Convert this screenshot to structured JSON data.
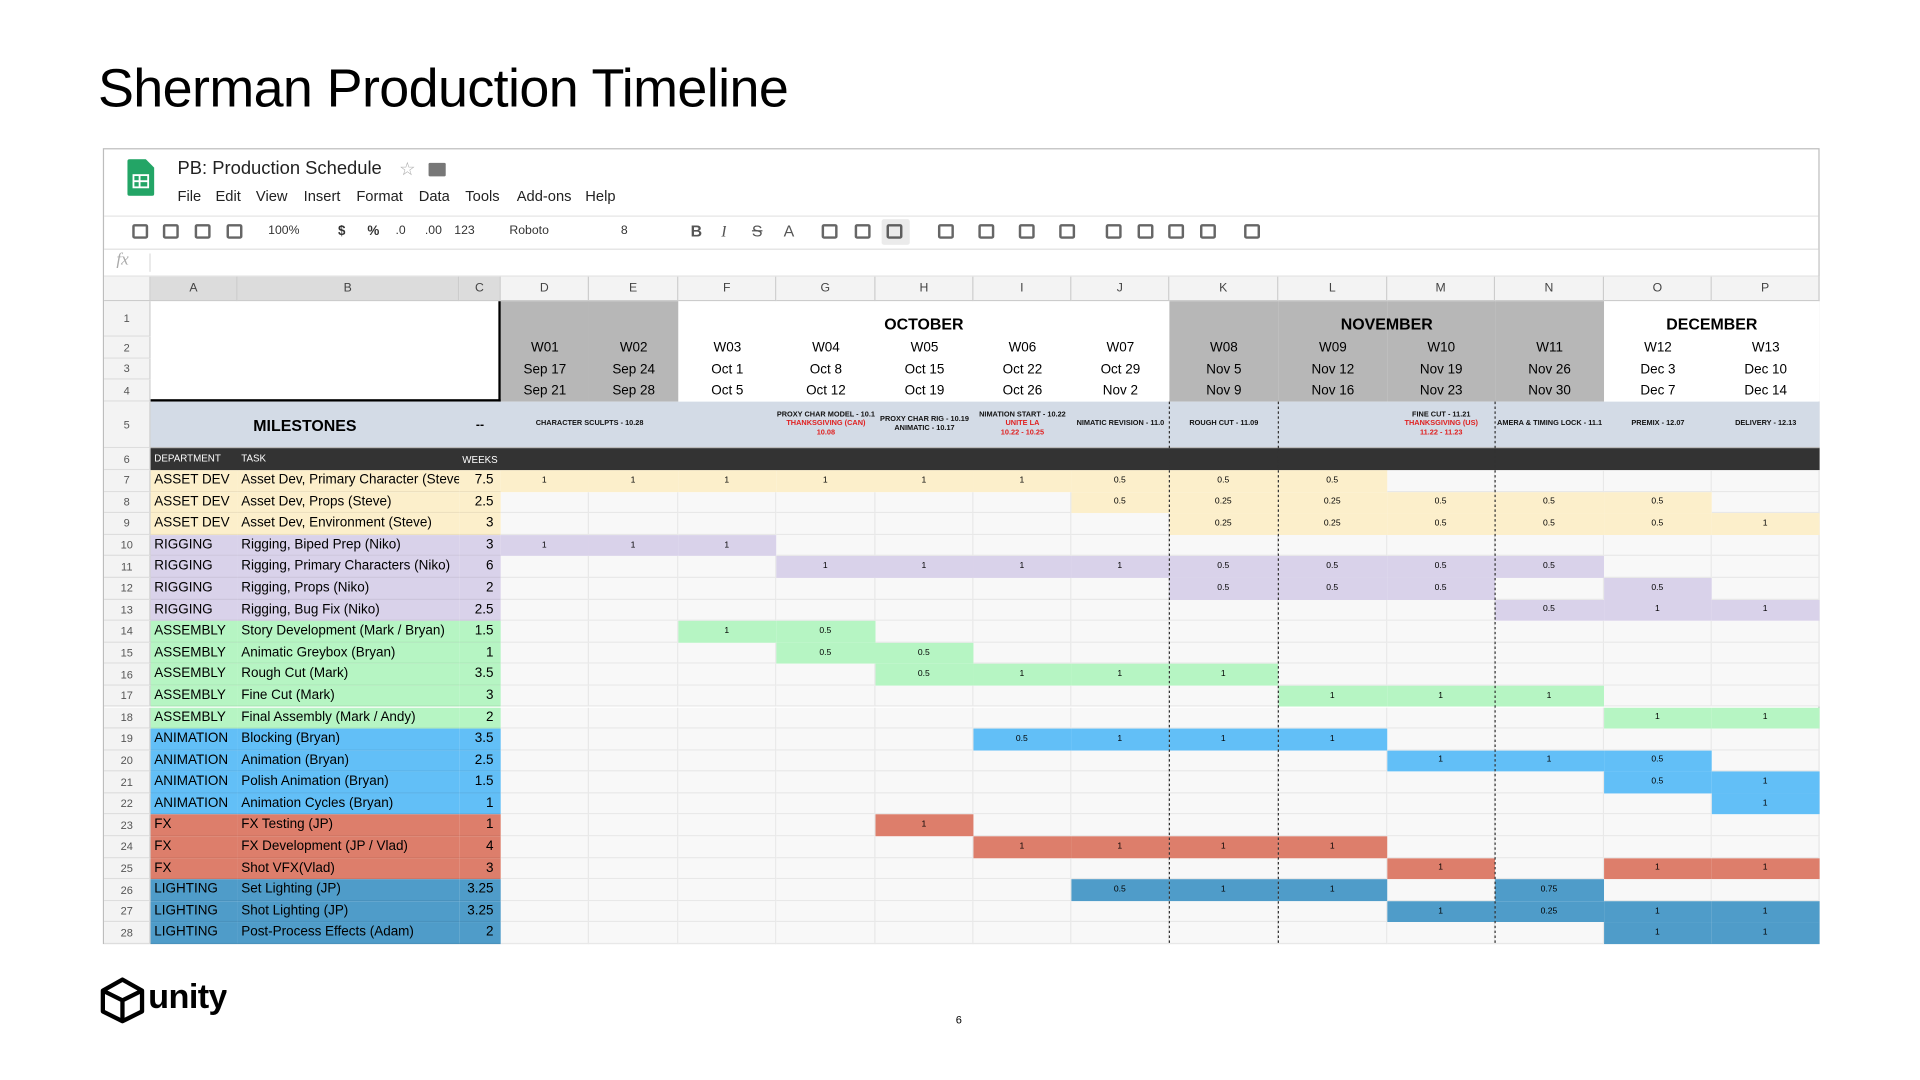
{
  "title": "Sherman Production Timeline",
  "sheet": {
    "doc_title": "PB: Production Schedule",
    "menu": [
      "File",
      "Edit",
      "View",
      "Insert",
      "Format",
      "Data",
      "Tools",
      "Add-ons",
      "Help"
    ],
    "toolbar": [
      "100%",
      "$",
      "%",
      ".0",
      ".00",
      "123",
      "Roboto",
      "8",
      "B",
      "I",
      "S",
      "A"
    ],
    "formula_label": "fx",
    "column_letters": [
      "A",
      "B",
      "C",
      "D",
      "E",
      "F",
      "G",
      "H",
      "I",
      "J",
      "K",
      "L",
      "M",
      "N",
      "O",
      "P"
    ],
    "row_numbers": [
      1,
      2,
      3,
      4,
      5,
      6,
      7,
      8,
      9,
      10,
      11,
      12,
      13,
      14,
      15,
      16,
      17,
      18,
      19,
      20,
      21,
      22,
      23,
      24,
      25,
      26,
      27,
      28
    ],
    "months": [
      {
        "label": "OCTOBER",
        "first_week": "W03",
        "last_week": "W07"
      },
      {
        "label": "NOVEMBER",
        "first_week": "W08",
        "last_week": "W11"
      },
      {
        "label": "DECEMBER",
        "first_week": "W12",
        "last_week": "W13"
      }
    ],
    "weeks": [
      {
        "week": "W01",
        "start": "Sep 17",
        "end": "Sep 21"
      },
      {
        "week": "W02",
        "start": "Sep 24",
        "end": "Sep 28"
      },
      {
        "week": "W03",
        "start": "Oct 1",
        "end": "Oct 5"
      },
      {
        "week": "W04",
        "start": "Oct 8",
        "end": "Oct 12"
      },
      {
        "week": "W05",
        "start": "Oct 15",
        "end": "Oct 19"
      },
      {
        "week": "W06",
        "start": "Oct 22",
        "end": "Oct 26"
      },
      {
        "week": "W07",
        "start": "Oct 29",
        "end": "Nov 2"
      },
      {
        "week": "W08",
        "start": "Nov 5",
        "end": "Nov 9"
      },
      {
        "week": "W09",
        "start": "Nov 12",
        "end": "Nov 16"
      },
      {
        "week": "W10",
        "start": "Nov 19",
        "end": "Nov 23"
      },
      {
        "week": "W11",
        "start": "Nov 26",
        "end": "Nov 30"
      },
      {
        "week": "W12",
        "start": "Dec 3",
        "end": "Dec 7"
      },
      {
        "week": "W13",
        "start": "Dec 10",
        "end": "Dec 14"
      }
    ],
    "milestones_label": "MILESTONES",
    "milestones_weeks": "--",
    "milestones": [
      [
        {
          "text": "CHARACTER SCULPTS - 10.28",
          "kind": "label"
        }
      ],
      null,
      null,
      [
        {
          "text": "PROXY CHAR MODEL - 10.1",
          "kind": "label"
        },
        {
          "text": "THANKSGIVING (CAN)",
          "kind": "holiday"
        },
        {
          "text": "10.08",
          "kind": "holiday"
        }
      ],
      [
        {
          "text": "PROXY CHAR RIG - 10.19",
          "kind": "label"
        },
        {
          "text": "ANIMATIC - 10.17",
          "kind": "label"
        }
      ],
      [
        {
          "text": "NIMATION START - 10.22",
          "kind": "label"
        },
        {
          "text": "UNITE LA",
          "kind": "holiday"
        },
        {
          "text": "10.22 - 10.25",
          "kind": "holiday"
        }
      ],
      [
        {
          "text": "NIMATIC REVISION - 11.0",
          "kind": "label"
        }
      ],
      [
        {
          "text": "ROUGH CUT - 11.09",
          "kind": "label"
        }
      ],
      null,
      [
        {
          "text": "FINE CUT - 11.21",
          "kind": "label"
        },
        {
          "text": "THANKSGIVING (US)",
          "kind": "holiday"
        },
        {
          "text": "11.22 - 11.23",
          "kind": "holiday"
        }
      ],
      [
        {
          "text": "AMERA & TIMING LOCK - 11.1",
          "kind": "label"
        }
      ],
      [
        {
          "text": "PREMIX - 12.07",
          "kind": "label"
        }
      ],
      [
        {
          "text": "DELIVERY - 12.13",
          "kind": "label"
        }
      ]
    ],
    "task_header": {
      "department": "DEPARTMENT",
      "task": "TASK",
      "weeks": "WEEKS"
    },
    "department_colors": {
      "ASSET DEV": "#fcefcb",
      "RIGGING": "#d9d2ea",
      "ASSEMBLY": "#b6f5c3",
      "ANIMATION": "#62bff7",
      "FX": "#dd7e6b",
      "LIGHTING": "#4f9cc9"
    },
    "tasks": [
      {
        "department": "ASSET DEV",
        "task": "Asset Dev, Primary Character (Steve)",
        "weeks": 7.5,
        "cells": [
          1,
          1,
          1,
          1,
          1,
          1,
          0.5,
          0.5,
          0.5,
          null,
          null,
          null,
          null
        ]
      },
      {
        "department": "ASSET DEV",
        "task": "Asset Dev, Props (Steve)",
        "weeks": 2.5,
        "cells": [
          null,
          null,
          null,
          null,
          null,
          null,
          0.5,
          0.25,
          0.25,
          0.5,
          0.5,
          0.5,
          null
        ]
      },
      {
        "department": "ASSET DEV",
        "task": "Asset Dev, Environment (Steve)",
        "weeks": 3,
        "cells": [
          null,
          null,
          null,
          null,
          null,
          null,
          null,
          0.25,
          0.25,
          0.5,
          0.5,
          0.5,
          1
        ]
      },
      {
        "department": "RIGGING",
        "task": "Rigging, Biped Prep (Niko)",
        "weeks": 3,
        "cells": [
          1,
          1,
          1,
          null,
          null,
          null,
          null,
          null,
          null,
          null,
          null,
          null,
          null
        ]
      },
      {
        "department": "RIGGING",
        "task": "Rigging, Primary Characters (Niko)",
        "weeks": 6,
        "cells": [
          null,
          null,
          null,
          1,
          1,
          1,
          1,
          0.5,
          0.5,
          0.5,
          0.5,
          null,
          null
        ]
      },
      {
        "department": "RIGGING",
        "task": "Rigging, Props (Niko)",
        "weeks": 2,
        "cells": [
          null,
          null,
          null,
          null,
          null,
          null,
          null,
          0.5,
          0.5,
          0.5,
          null,
          0.5,
          null
        ]
      },
      {
        "department": "RIGGING",
        "task": "Rigging, Bug Fix (Niko)",
        "weeks": 2.5,
        "cells": [
          null,
          null,
          null,
          null,
          null,
          null,
          null,
          null,
          null,
          null,
          0.5,
          1,
          1
        ]
      },
      {
        "department": "ASSEMBLY",
        "task": "Story Development (Mark / Bryan)",
        "weeks": 1.5,
        "cells": [
          null,
          null,
          1,
          0.5,
          null,
          null,
          null,
          null,
          null,
          null,
          null,
          null,
          null
        ]
      },
      {
        "department": "ASSEMBLY",
        "task": "Animatic Greybox (Bryan)",
        "weeks": 1,
        "cells": [
          null,
          null,
          null,
          0.5,
          0.5,
          null,
          null,
          null,
          null,
          null,
          null,
          null,
          null
        ]
      },
      {
        "department": "ASSEMBLY",
        "task": "Rough Cut (Mark)",
        "weeks": 3.5,
        "cells": [
          null,
          null,
          null,
          null,
          0.5,
          1,
          1,
          1,
          null,
          null,
          null,
          null,
          null
        ]
      },
      {
        "department": "ASSEMBLY",
        "task": "Fine Cut (Mark)",
        "weeks": 3,
        "cells": [
          null,
          null,
          null,
          null,
          null,
          null,
          null,
          null,
          1,
          1,
          1,
          null,
          null
        ]
      },
      {
        "department": "ASSEMBLY",
        "task": "Final Assembly (Mark / Andy)",
        "weeks": 2,
        "cells": [
          null,
          null,
          null,
          null,
          null,
          null,
          null,
          null,
          null,
          null,
          null,
          1,
          1
        ]
      },
      {
        "department": "ANIMATION",
        "task": "Blocking (Bryan)",
        "weeks": 3.5,
        "cells": [
          null,
          null,
          null,
          null,
          null,
          0.5,
          1,
          1,
          1,
          null,
          null,
          null,
          null
        ]
      },
      {
        "department": "ANIMATION",
        "task": "Animation (Bryan)",
        "weeks": 2.5,
        "cells": [
          null,
          null,
          null,
          null,
          null,
          null,
          null,
          null,
          null,
          1,
          1,
          0.5,
          null
        ]
      },
      {
        "department": "ANIMATION",
        "task": "Polish Animation (Bryan)",
        "weeks": 1.5,
        "cells": [
          null,
          null,
          null,
          null,
          null,
          null,
          null,
          null,
          null,
          null,
          null,
          0.5,
          1
        ]
      },
      {
        "department": "ANIMATION",
        "task": "Animation Cycles (Bryan)",
        "weeks": 1,
        "cells": [
          null,
          null,
          null,
          null,
          null,
          null,
          null,
          null,
          null,
          null,
          null,
          null,
          1
        ]
      },
      {
        "department": "FX",
        "task": "FX Testing (JP)",
        "weeks": 1,
        "cells": [
          null,
          null,
          null,
          null,
          1,
          null,
          null,
          null,
          null,
          null,
          null,
          null,
          null
        ]
      },
      {
        "department": "FX",
        "task": "FX Development (JP / Vlad)",
        "weeks": 4,
        "cells": [
          null,
          null,
          null,
          null,
          null,
          1,
          1,
          1,
          1,
          null,
          null,
          null,
          null
        ]
      },
      {
        "department": "FX",
        "task": "Shot VFX(Vlad)",
        "weeks": 3,
        "cells": [
          null,
          null,
          null,
          null,
          null,
          null,
          null,
          null,
          null,
          1,
          null,
          1,
          1
        ]
      },
      {
        "department": "LIGHTING",
        "task": "Set Lighting (JP)",
        "weeks": 3.25,
        "cells": [
          null,
          null,
          null,
          null,
          null,
          null,
          0.5,
          1,
          1,
          null,
          0.75,
          null,
          null
        ]
      },
      {
        "department": "LIGHTING",
        "task": "Shot Lighting (JP)",
        "weeks": 3.25,
        "cells": [
          null,
          null,
          null,
          null,
          null,
          null,
          null,
          null,
          null,
          1,
          0.25,
          1,
          1
        ]
      },
      {
        "department": "LIGHTING",
        "task": "Post-Process Effects (Adam)",
        "weeks": 2,
        "cells": [
          null,
          null,
          null,
          null,
          null,
          null,
          null,
          null,
          null,
          null,
          null,
          1,
          1
        ]
      }
    ]
  },
  "footer": {
    "logo_text": "unity",
    "page_number": "6"
  }
}
